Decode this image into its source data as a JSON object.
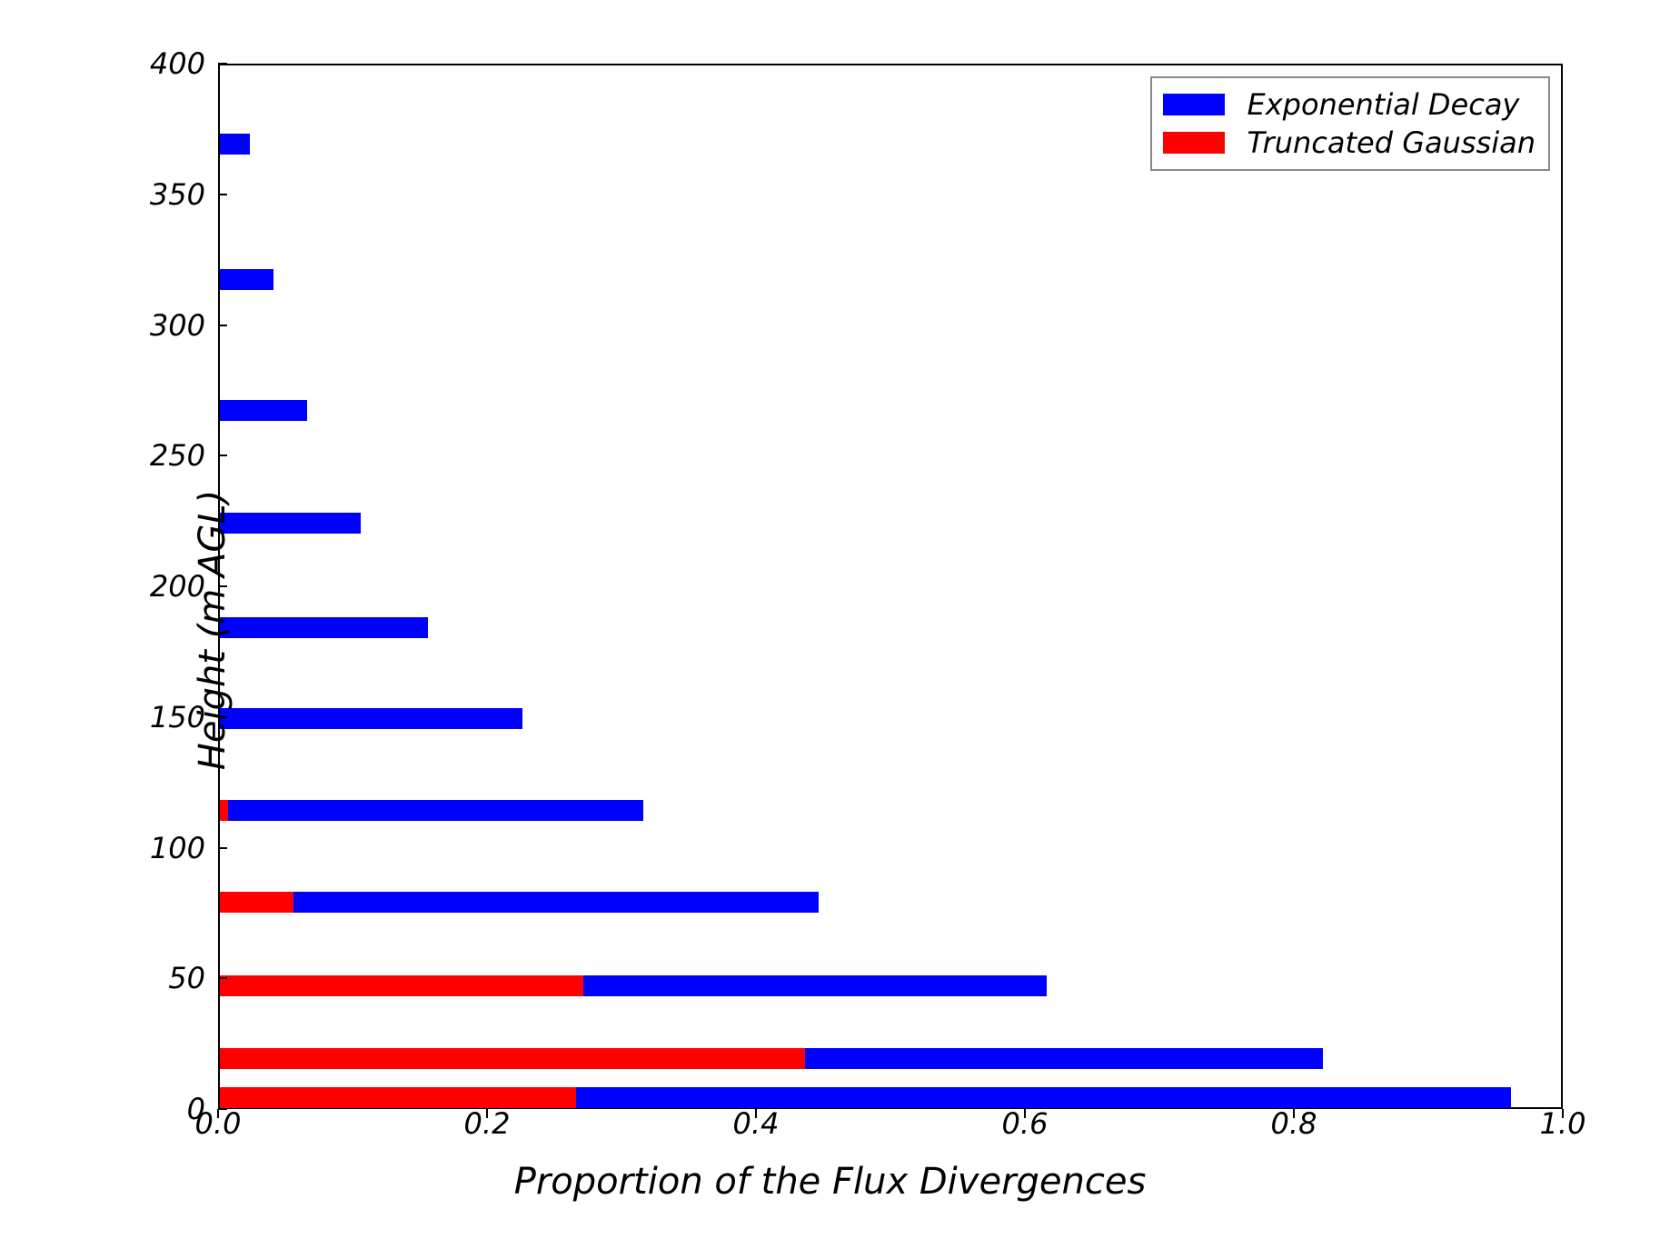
{
  "chart": {
    "type": "horizontal-bar",
    "xlabel": "Proportion of the Flux Divergences",
    "ylabel": "Height (m AGL)",
    "xlim": [
      0.0,
      1.0
    ],
    "ylim": [
      0,
      400
    ],
    "xticks": [
      0.0,
      0.2,
      0.4,
      0.6,
      0.8,
      1.0
    ],
    "xtick_labels": [
      "0.0",
      "0.2",
      "0.4",
      "0.6",
      "0.8",
      "1.0"
    ],
    "yticks": [
      0,
      50,
      100,
      150,
      200,
      250,
      300,
      350,
      400
    ],
    "ytick_labels": [
      "0",
      "50",
      "100",
      "150",
      "200",
      "250",
      "300",
      "350",
      "400"
    ],
    "bar_height_data_units": 8,
    "background_color": "#ffffff",
    "axis_line_width": 2,
    "tick_fontsize": 32,
    "label_fontsize": 40,
    "font_style": "italic",
    "series": [
      {
        "name": "Exponential Decay",
        "color": "#0000ff",
        "heights": [
          5,
          20,
          48,
          80,
          115,
          150,
          185,
          225,
          268,
          318,
          370
        ],
        "values": [
          0.96,
          0.82,
          0.615,
          0.445,
          0.315,
          0.225,
          0.155,
          0.105,
          0.065,
          0.04,
          0.022
        ]
      },
      {
        "name": "Truncated Gaussian",
        "color": "#ff0000",
        "heights": [
          5,
          20,
          48,
          80,
          115,
          150,
          185,
          225,
          268,
          318,
          370
        ],
        "values": [
          0.265,
          0.435,
          0.27,
          0.055,
          0.006,
          0.0,
          0.0,
          0.0,
          0.0,
          0.0,
          0.0
        ]
      }
    ],
    "legend": {
      "position": "upper-right",
      "border_color": "#888888",
      "items": [
        {
          "label": "Exponential Decay",
          "color": "#0000ff"
        },
        {
          "label": "Truncated Gaussian",
          "color": "#ff0000"
        }
      ]
    }
  }
}
